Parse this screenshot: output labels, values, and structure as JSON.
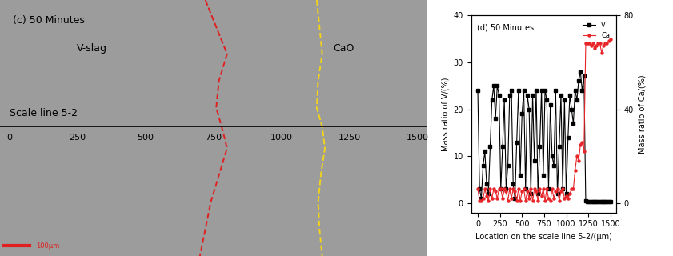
{
  "chart_data": [
    {
      "type": "image",
      "title": "(c) 50 Minutes",
      "texts": [
        "V-slag",
        "CaO"
      ],
      "scale_line_label": "Scale line 5-2",
      "scale_bar_label": "100μm",
      "scale_line_y": 470,
      "xlim": [
        -36,
        1537
      ],
      "ylim": [
        950,
        0
      ],
      "xticks": [
        0,
        250,
        500,
        750,
        1000,
        1250,
        1500
      ],
      "tick_labels": "x",
      "series": [
        {
          "color": "#e02020",
          "line_style": "dashed",
          "x": [
            720,
            760,
            800,
            770,
            760,
            780,
            800,
            770,
            740,
            720,
            700
          ],
          "y": [
            0,
            100,
            200,
            300,
            400,
            470,
            550,
            650,
            750,
            850,
            950
          ]
        },
        {
          "color": "#f2d21b",
          "line_style": "dashed",
          "x": [
            1130,
            1140,
            1150,
            1135,
            1130,
            1150,
            1160,
            1145,
            1135,
            1140,
            1150
          ],
          "y": [
            0,
            100,
            200,
            300,
            400,
            470,
            550,
            650,
            750,
            850,
            950
          ]
        }
      ]
    },
    {
      "type": "line",
      "title": "(d) 50 Minutes",
      "x_label": "Location on the scale line 5-2/(μm)",
      "y_label": "Mass ratio of V/(%)",
      "y2_label": "Mass ratio of Ca/(%)",
      "x": [
        0,
        20,
        40,
        60,
        80,
        100,
        120,
        140,
        160,
        180,
        200,
        220,
        240,
        260,
        280,
        300,
        320,
        340,
        360,
        380,
        400,
        420,
        440,
        460,
        480,
        500,
        520,
        540,
        560,
        580,
        600,
        620,
        640,
        660,
        680,
        700,
        720,
        740,
        760,
        780,
        800,
        820,
        840,
        860,
        880,
        900,
        920,
        940,
        960,
        980,
        1000,
        1020,
        1040,
        1060,
        1080,
        1100,
        1120,
        1140,
        1160,
        1180,
        1200,
        1220,
        1240,
        1260,
        1280,
        1300,
        1320,
        1340,
        1360,
        1380,
        1400,
        1420,
        1440,
        1460,
        1480,
        1500
      ],
      "series": [
        {
          "name": "V",
          "color": "#000000",
          "marker": "square",
          "values": [
            24,
            3,
            1,
            8,
            11,
            4,
            2,
            12,
            22,
            25,
            18,
            25,
            23,
            3,
            12,
            22,
            3,
            8,
            23,
            24,
            4,
            1,
            13,
            24,
            6,
            19,
            24,
            3,
            23,
            20,
            2,
            23,
            9,
            24,
            2,
            12,
            24,
            6,
            24,
            22,
            3,
            21,
            10,
            8,
            24,
            2,
            12,
            23,
            3,
            22,
            2,
            14,
            23,
            20,
            17,
            24,
            22,
            26,
            28,
            24,
            27,
            0.5,
            0.3,
            0.3,
            0.3,
            0.3,
            0.3,
            0.3,
            0.3,
            0.3,
            0.3,
            0.3,
            0.3,
            0.3,
            0.3,
            0.3
          ]
        },
        {
          "name": "Ca",
          "color": "#e8262a",
          "marker": "circle",
          "axis": "y2",
          "values": [
            6,
            1,
            1,
            2,
            6,
            3,
            1,
            6,
            2,
            6,
            5,
            2,
            6,
            6,
            2,
            6,
            5,
            1,
            6,
            2,
            6,
            5,
            1,
            6,
            1,
            5,
            6,
            1,
            5,
            2,
            6,
            1,
            6,
            5,
            1,
            6,
            3,
            6,
            1,
            6,
            2,
            1,
            6,
            2,
            5,
            6,
            1,
            5,
            6,
            2,
            3,
            2,
            4,
            6,
            6,
            14,
            20,
            18,
            25,
            26,
            22,
            68,
            68,
            68,
            67,
            68,
            66,
            67,
            68,
            68,
            64,
            67,
            68,
            68,
            69,
            70
          ]
        }
      ],
      "xlim": [
        -75,
        1560
      ],
      "xticks": [
        0,
        250,
        500,
        750,
        1000,
        1250,
        1500
      ],
      "ylim": [
        -2,
        40
      ],
      "yticks": [
        0,
        10,
        20,
        30,
        40
      ],
      "y2lim": [
        -4,
        80
      ],
      "y2ticks": [
        0,
        40,
        80
      ],
      "legend": "upper right"
    }
  ]
}
